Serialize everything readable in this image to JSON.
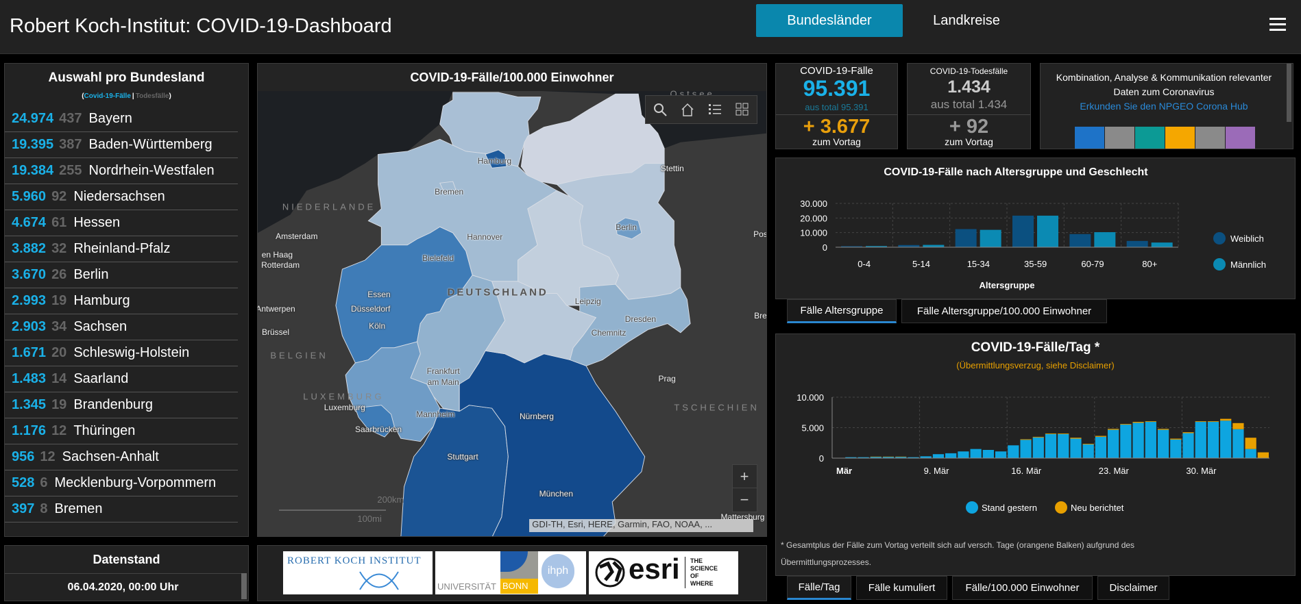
{
  "header": {
    "title": "Robert Koch-Institut: COVID-19-Dashboard",
    "tabs": [
      {
        "label": "Bundesländer",
        "active": true
      },
      {
        "label": "Landkreise",
        "active": false
      }
    ],
    "menu_icon": "hamburger-menu-icon"
  },
  "states_panel": {
    "title": "Auswahl pro Bundesland",
    "legend_open": "(",
    "legend_cases": "Covid-19-Fälle",
    "legend_sep": "|",
    "legend_deaths": "Todesfälle",
    "legend_close": ")",
    "rows": [
      {
        "cases": "24.974",
        "deaths": "437",
        "name": "Bayern"
      },
      {
        "cases": "19.395",
        "deaths": "387",
        "name": "Baden-Württemberg"
      },
      {
        "cases": "19.384",
        "deaths": "255",
        "name": "Nordrhein-Westfalen"
      },
      {
        "cases": "5.960",
        "deaths": "92",
        "name": "Niedersachsen"
      },
      {
        "cases": "4.674",
        "deaths": "61",
        "name": "Hessen"
      },
      {
        "cases": "3.882",
        "deaths": "32",
        "name": "Rheinland-Pfalz"
      },
      {
        "cases": "3.670",
        "deaths": "26",
        "name": "Berlin"
      },
      {
        "cases": "2.993",
        "deaths": "19",
        "name": "Hamburg"
      },
      {
        "cases": "2.903",
        "deaths": "34",
        "name": "Sachsen"
      },
      {
        "cases": "1.671",
        "deaths": "20",
        "name": "Schleswig-Holstein"
      },
      {
        "cases": "1.483",
        "deaths": "14",
        "name": "Saarland"
      },
      {
        "cases": "1.345",
        "deaths": "19",
        "name": "Brandenburg"
      },
      {
        "cases": "1.176",
        "deaths": "12",
        "name": "Thüringen"
      },
      {
        "cases": "956",
        "deaths": "12",
        "name": "Sachsen-Anhalt"
      },
      {
        "cases": "528",
        "deaths": "6",
        "name": "Mecklenburg-Vorpommern"
      },
      {
        "cases": "397",
        "deaths": "8",
        "name": "Bremen"
      }
    ]
  },
  "datenstand": {
    "title": "Datenstand",
    "value": "06.04.2020, 00:00 Uhr"
  },
  "map": {
    "title": "COVID-19-Fälle/100.000 Einwohner",
    "state_colors": {
      "Schleswig-Holstein": "#a9bfd5",
      "Mecklenburg-Vorpommern": "#cfd5e1",
      "Hamburg": "#1d5a9c",
      "Niedersachsen": "#a3bcd3",
      "Bremen": "#a3bcd3",
      "Nordrhein-Westfalen": "#3f7cb7",
      "Hessen": "#92b2ce",
      "Rheinland-Pfalz": "#6f9cc6",
      "Saarland": "#3f7cb7",
      "Baden-Württemberg": "#1b5494",
      "Bayern": "#134a8c",
      "Thüringen": "#b9c9da",
      "Sachsen-Anhalt": "#c2cfdd",
      "Brandenburg": "#b6c7d9",
      "Berlin": "#6f9cc6",
      "Sachsen": "#92b2ce"
    },
    "labels": {
      "ostsee": "Ostsee",
      "hamburg": "Hamburg",
      "bremen": "Bremen",
      "hannover": "Hannover",
      "bielefeld": "Bielefeld",
      "essen": "Essen",
      "duesseldorf": "Düsseldorf",
      "koeln": "Köln",
      "frankfurt1": "Frankfurt",
      "frankfurt2": "am Main",
      "mannheim": "Mannheim",
      "saarbruecken": "Saarbrücken",
      "stuttgart": "Stuttgart",
      "nuernberg": "Nürnberg",
      "muenchen": "München",
      "leipzig": "Leipzig",
      "dresden": "Dresden",
      "chemnitz": "Chemnitz",
      "berlin": "Berlin",
      "stettin": "Stettin",
      "amsterdam": "Amsterdam",
      "denhaag": "en Haag",
      "rotterdam": "Rotterdam",
      "antwerpen": "Antwerpen",
      "bruessel": "Brüssel",
      "prag": "Prag",
      "posen": "Pos",
      "breslau": "Bre",
      "niederlande": "NIEDERLANDE",
      "belgien": "BELGIEN",
      "luxemburg_country": "LUXEMBURG",
      "luxemburg": "Luxemburg",
      "tschechien": "TSCHECHIEN",
      "deutschland": "DEUTSCHLAND",
      "mattersburg": "Mattersburg"
    },
    "scale_km": "200km",
    "scale_mi": "100mi",
    "attribution": "GDI-TH, Esri, HERE, Garmin, FAO, NOAA, ...",
    "zoom_in": "+",
    "zoom_out": "−",
    "tools": [
      "search-icon",
      "home-icon",
      "legend-list-icon",
      "basemap-gallery-icon"
    ]
  },
  "logos": {
    "rki": "ROBERT KOCH INSTITUT",
    "bonn_uni": "UNIVERSITÄT",
    "bonn": "BONN",
    "ihph": "ihph",
    "esri": "esri",
    "esri_tag": "THE SCIENCE OF WHERE"
  },
  "cases_box": {
    "title": "COVID-19-Fälle",
    "value": "95.391",
    "total": "aus total 95.391",
    "delta": "+ 3.677",
    "delta_label": "zum Vortag"
  },
  "deaths_box": {
    "title": "COVID-19-Todesfälle",
    "value": "1.434",
    "total": "aus total 1.434",
    "delta": "+ 92",
    "delta_label": "zum Vortag"
  },
  "hub_box": {
    "text1": "Kombination, Analyse & Kommunikation relevanter",
    "text2": "Daten zum Coronavirus",
    "link": "Erkunden Sie den NPGEO Corona Hub",
    "icon_colors": [
      "#1e73c8",
      "#8a8a8a",
      "#0c9a95",
      "#f5a700",
      "#8a8a8a",
      "#9b6bb8"
    ]
  },
  "colors": {
    "accent": "#0a87ad",
    "cases": "#1ab1e8",
    "delta": "#e89f0c"
  },
  "chart_data": [
    {
      "type": "bar",
      "title": "COVID-19-Fälle nach Altersgruppe und Geschlecht",
      "xlabel": "Altersgruppe",
      "ylabel": "",
      "categories": [
        "0-4",
        "5-14",
        "15-34",
        "35-59",
        "60-79",
        "80+"
      ],
      "series": [
        {
          "name": "Weiblich",
          "color": "#0b5080",
          "values": [
            700,
            1500,
            12400,
            21600,
            9000,
            4300
          ]
        },
        {
          "name": "Männlich",
          "color": "#0b8ab3",
          "values": [
            800,
            1600,
            11900,
            21600,
            10300,
            3200
          ]
        }
      ],
      "yticks": [
        "0",
        "10.000",
        "20.000",
        "30.000"
      ],
      "ylim": [
        0,
        30000
      ],
      "grid": true,
      "legend": "right",
      "tabs": [
        {
          "label": "Fälle Altersgruppe",
          "active": true
        },
        {
          "label": "Fälle Altersgruppe/100.000 Einwohner",
          "active": false
        }
      ]
    },
    {
      "type": "bar",
      "stacked": true,
      "title": "COVID-19-Fälle/Tag *",
      "subtitle": "(Übermittlungsverzug, siehe Disclaimer)",
      "x_start": "2020-03-02",
      "xticks": [
        {
          "label": "Mär",
          "day": 0
        },
        {
          "label": "9. Mär",
          "day": 7
        },
        {
          "label": "16. Mär",
          "day": 14
        },
        {
          "label": "23. Mär",
          "day": 21
        },
        {
          "label": "30. Mär",
          "day": 28
        }
      ],
      "series": [
        {
          "name": "Stand gestern",
          "color": "#0ea5e0",
          "values": [
            50,
            150,
            150,
            200,
            200,
            200,
            150,
            300,
            650,
            800,
            1100,
            1500,
            1350,
            1100,
            2100,
            3000,
            3400,
            3950,
            3950,
            3200,
            2250,
            3500,
            4650,
            5500,
            5800,
            5950,
            4650,
            3050,
            4100,
            5950,
            5950,
            6150,
            4750,
            1500,
            0
          ]
        },
        {
          "name": "Neu berichtet",
          "color": "#e8a000",
          "values": [
            0,
            0,
            0,
            50,
            50,
            50,
            0,
            0,
            0,
            0,
            0,
            0,
            0,
            0,
            0,
            100,
            100,
            100,
            100,
            150,
            100,
            150,
            150,
            100,
            150,
            100,
            150,
            150,
            150,
            100,
            100,
            300,
            1000,
            1850,
            950
          ]
        }
      ],
      "yticks": [
        "0",
        "5.000",
        "10.000"
      ],
      "ylim": [
        0,
        10000
      ],
      "grid": true,
      "legend": "bottom",
      "footnote1": "* Gesamtplus der Fälle zum Vortag verteilt sich auf versch. Tage (orangene Balken) aufgrund des",
      "footnote2": "Übermittlungsprozesses.",
      "tabs": [
        {
          "label": "Fälle/Tag",
          "active": true
        },
        {
          "label": "Fälle kumuliert",
          "active": false
        },
        {
          "label": "Fälle/100.000 Einwohner",
          "active": false
        },
        {
          "label": "Disclaimer",
          "active": false
        }
      ]
    }
  ]
}
